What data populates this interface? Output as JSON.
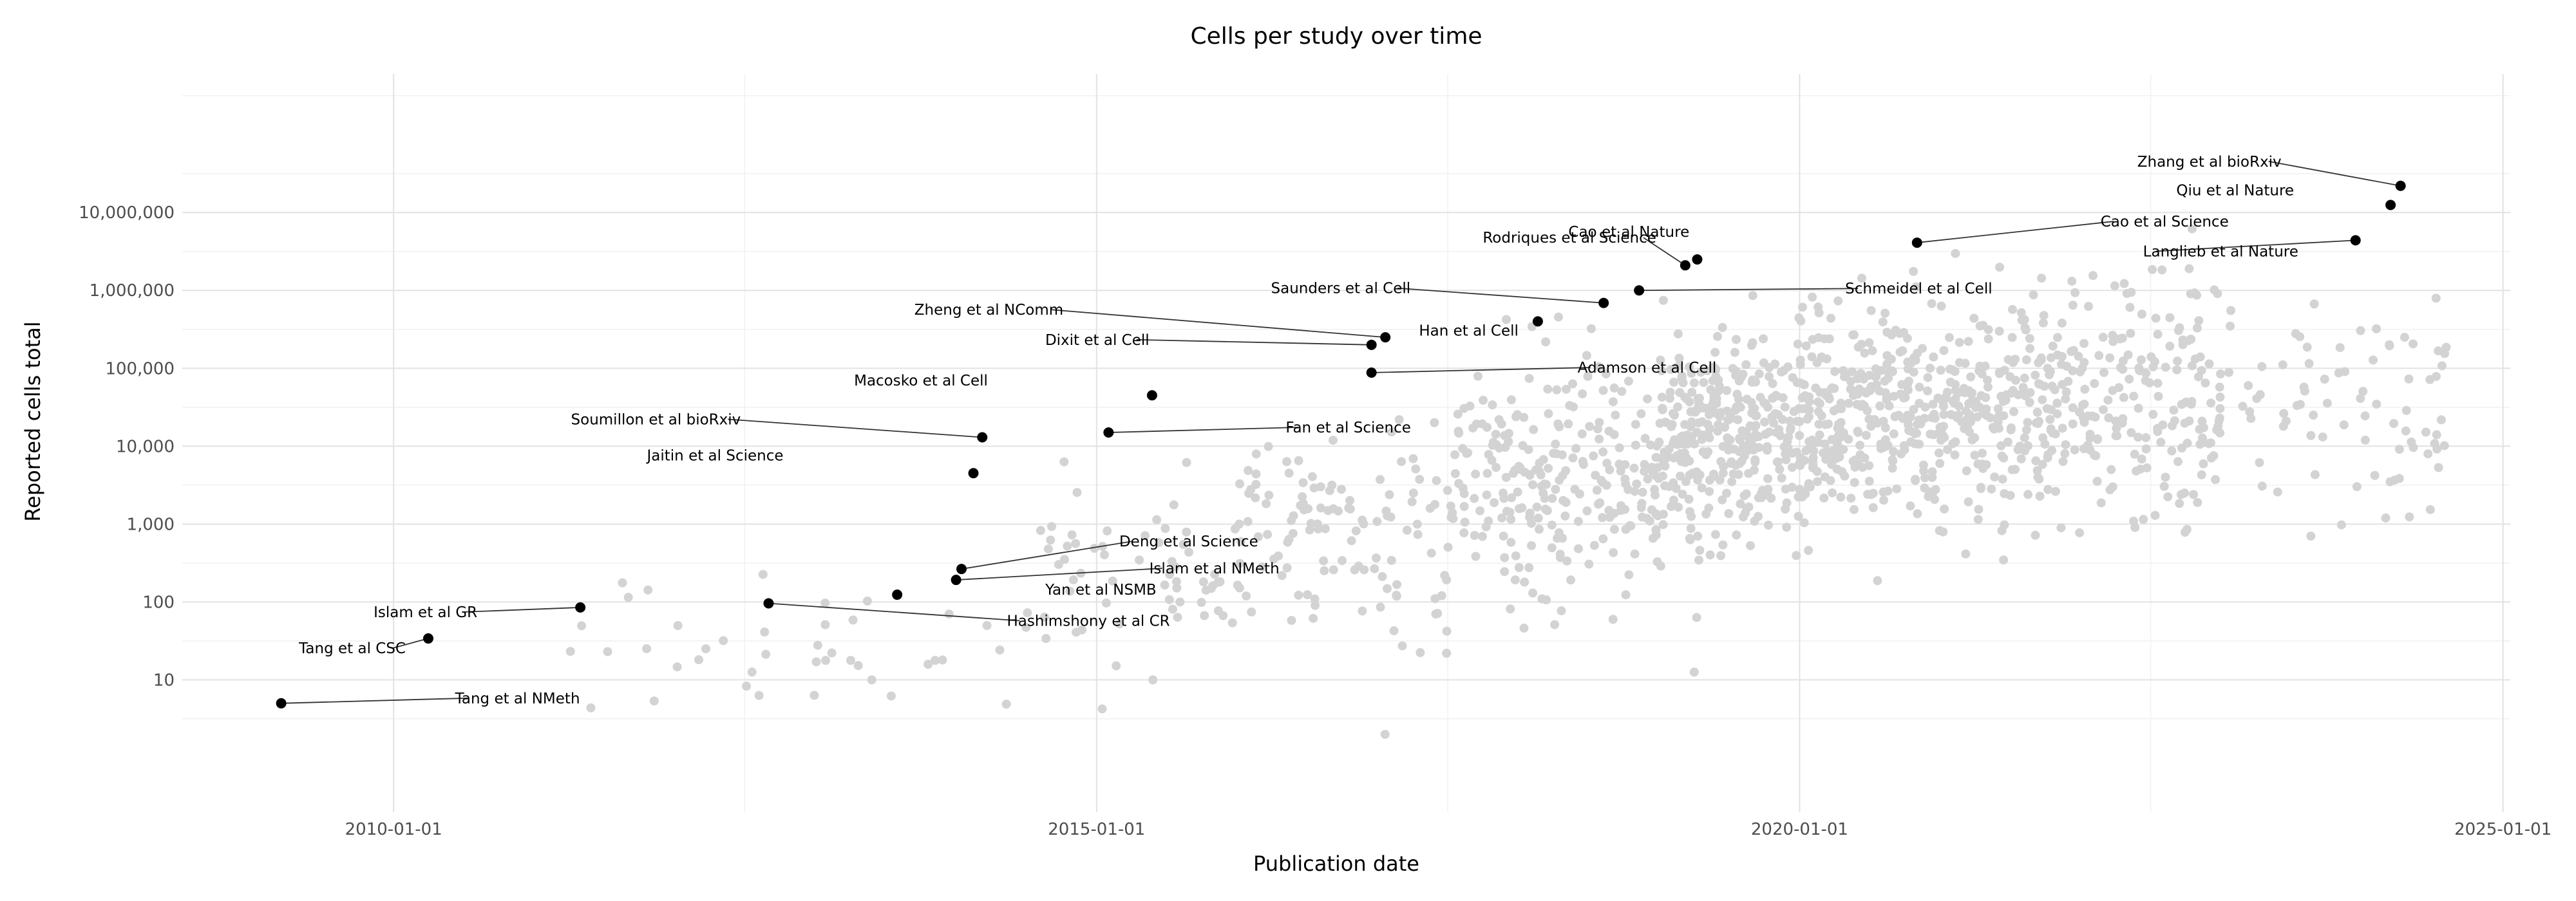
{
  "chart_data": {
    "type": "scatter",
    "title": "Cells per study over time",
    "xlabel": "Publication date",
    "ylabel": "Reported cells total",
    "x_scale": "date",
    "y_scale": "log10",
    "xlim": [
      "2008-07-01",
      "2025-01-20"
    ],
    "ylim": [
      0.2,
      600000000
    ],
    "x_ticks": [
      "2010-01-01",
      "2015-01-01",
      "2020-01-01",
      "2025-01-01"
    ],
    "y_ticks": [
      10,
      100,
      1000,
      10000,
      100000,
      1000000,
      10000000
    ],
    "y_tick_labels": [
      "10",
      "100",
      "1,000",
      "10,000",
      "100,000",
      "1,000,000",
      "10,000,000"
    ],
    "grid": true,
    "colors": {
      "highlight": "#000000",
      "background_points": "#d3d3d3",
      "grid": "#e2e2e2"
    },
    "highlighted": [
      {
        "label": "Tang et al NMeth",
        "date": "2009-03-15",
        "cells": 5
      },
      {
        "label": "Tang et al CSC",
        "date": "2010-04-01",
        "cells": 34
      },
      {
        "label": "Islam et al GR",
        "date": "2011-05-01",
        "cells": 85
      },
      {
        "label": "Hashimshony et al CR",
        "date": "2012-09-01",
        "cells": 96
      },
      {
        "label": "Yan et al NSMB",
        "date": "2013-08-01",
        "cells": 124
      },
      {
        "label": "Islam et al NMeth",
        "date": "2014-01-01",
        "cells": 192
      },
      {
        "label": "Deng et al Science",
        "date": "2014-01-15",
        "cells": 265
      },
      {
        "label": "Jaitin et al Science",
        "date": "2014-02-15",
        "cells": 4500
      },
      {
        "label": "Soumillon et al bioRxiv",
        "date": "2014-03-10",
        "cells": 13000
      },
      {
        "label": "Fan et al Science",
        "date": "2015-02-01",
        "cells": 15000
      },
      {
        "label": "Macosko et al Cell",
        "date": "2015-05-25",
        "cells": 45000
      },
      {
        "label": "Adamson et al Cell",
        "date": "2016-12-15",
        "cells": 88000
      },
      {
        "label": "Dixit et al Cell",
        "date": "2016-12-15",
        "cells": 200000
      },
      {
        "label": "Zheng et al NComm",
        "date": "2017-01-20",
        "cells": 250000
      },
      {
        "label": "Han et al Cell",
        "date": "2018-02-20",
        "cells": 400000
      },
      {
        "label": "Saunders et al Cell",
        "date": "2018-08-10",
        "cells": 690000
      },
      {
        "label": "Schmeidel et al Cell",
        "date": "2018-11-10",
        "cells": 1000000
      },
      {
        "label": "Rodriques et al Science",
        "date": "2019-03-10",
        "cells": 2100000
      },
      {
        "label": "Cao et al Nature",
        "date": "2019-04-10",
        "cells": 2500000
      },
      {
        "label": "Cao et al Science",
        "date": "2020-11-01",
        "cells": 4100000
      },
      {
        "label": "Langlieb et al Nature",
        "date": "2023-12-15",
        "cells": 4400000
      },
      {
        "label": "Qiu et al Nature",
        "date": "2024-03-15",
        "cells": 12500000
      },
      {
        "label": "Zhang et al bioRxiv",
        "date": "2024-04-10",
        "cells": 22000000
      }
    ]
  }
}
